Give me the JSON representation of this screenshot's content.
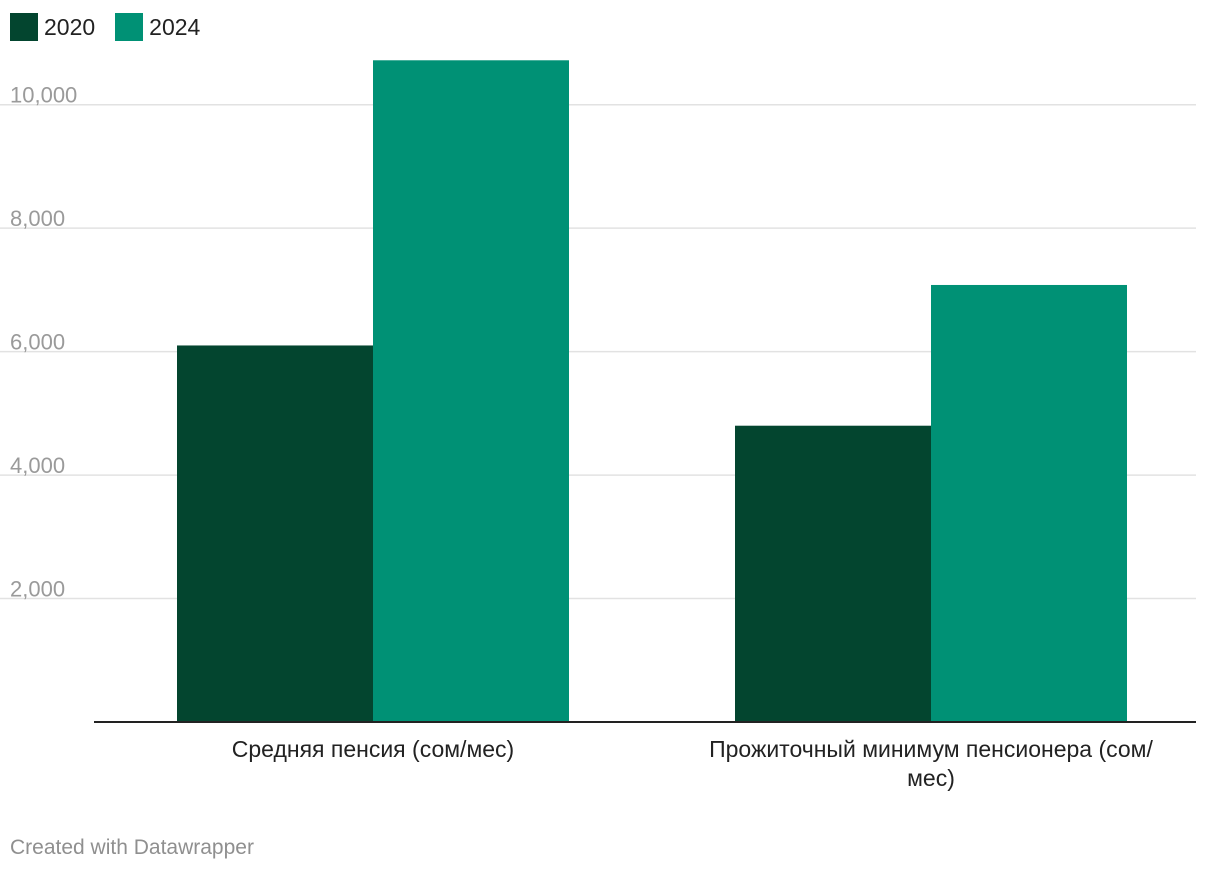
{
  "chart_data": {
    "type": "bar",
    "categories": [
      [
        "Средняя пенсия (сом/мес)"
      ],
      [
        "Прожиточный минимум пенсионера (сом/",
        "мес)"
      ]
    ],
    "series": [
      {
        "name": "2020",
        "color": "#03452f",
        "values": [
          6100,
          4800
        ]
      },
      {
        "name": "2024",
        "color": "#009175",
        "values": [
          10720,
          7080
        ]
      }
    ],
    "yticks": [
      2000,
      4000,
      6000,
      8000,
      10000
    ],
    "ytick_labels": [
      "2,000",
      "4,000",
      "6,000",
      "8,000",
      "10,000"
    ],
    "ylim": [
      0,
      11000
    ],
    "grid": true,
    "legend_position": "top-left",
    "title": "",
    "xlabel": "",
    "ylabel": ""
  },
  "credit": "Created with Datawrapper"
}
